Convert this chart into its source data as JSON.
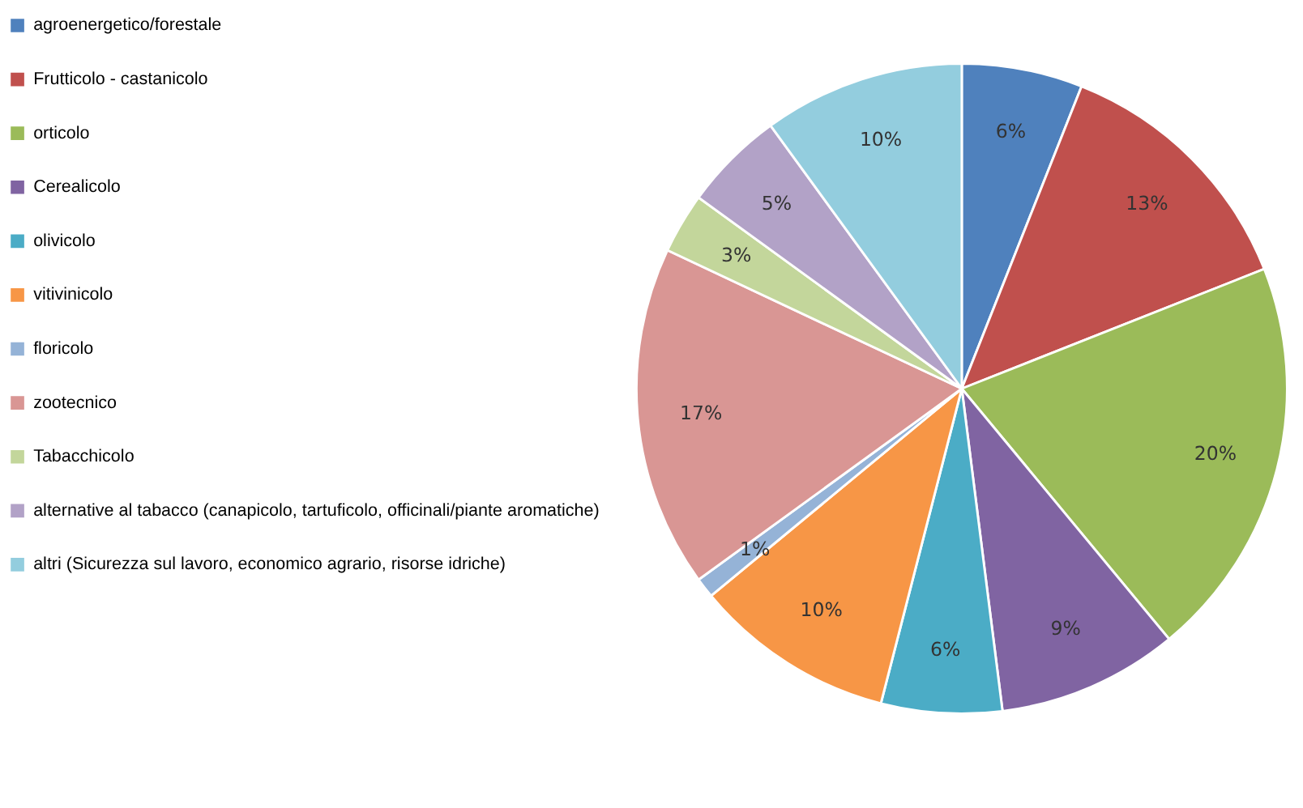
{
  "chart_data": {
    "type": "pie",
    "categories": [
      "agroenergetico/forestale",
      "Frutticolo - castanicolo",
      "orticolo",
      "Cerealicolo",
      "olivicolo",
      "vitivinicolo",
      "floricolo",
      "zootecnico",
      "Tabacchicolo",
      "alternative al tabacco (canapicolo, tartuficolo, officinali/piante aromatiche)",
      "altri (Sicurezza sul lavoro, economico agrario, risorse idriche)"
    ],
    "values": [
      6,
      13,
      20,
      9,
      6,
      10,
      1,
      17,
      3,
      5,
      10
    ],
    "value_labels": [
      "6%",
      "13%",
      "20%",
      "9%",
      "6%",
      "10%",
      "1%",
      "17%",
      "3%",
      "5%",
      "10%"
    ],
    "colors": [
      "#4f81bd",
      "#c0504d",
      "#9bbb59",
      "#8064a2",
      "#4bacc6",
      "#f79646",
      "#95b3d7",
      "#d99694",
      "#c3d69b",
      "#b2a2c7",
      "#93cdde"
    ],
    "legend": "left"
  }
}
